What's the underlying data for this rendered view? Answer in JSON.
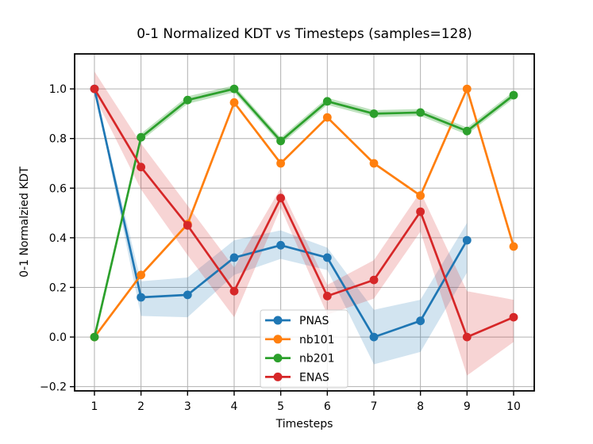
{
  "chart_data": {
    "type": "line",
    "title": "0-1 Normalized KDT vs Timesteps (samples=128)",
    "xlabel": "Timesteps",
    "ylabel": "0-1 Normalzied KDT",
    "grid": true,
    "grid_color": "#b0b0b0",
    "legend_position": "inside lower-center-left",
    "xlim": [
      0.5745,
      10.4435
    ],
    "ylim": [
      -0.217,
      1.141
    ],
    "x_ticks": [
      1,
      2,
      3,
      4,
      5,
      6,
      7,
      8,
      9,
      10
    ],
    "x_tick_labels": [
      "1",
      "2",
      "3",
      "4",
      "5",
      "6",
      "7",
      "8",
      "9",
      "10"
    ],
    "y_ticks": [
      -0.2,
      0.0,
      0.2,
      0.4,
      0.6,
      0.8,
      1.0
    ],
    "y_tick_labels": [
      "−0.2",
      "0.0",
      "0.2",
      "0.4",
      "0.6",
      "0.8",
      "1.0"
    ],
    "series": [
      {
        "name": "PNAS",
        "color": "#1f77b4",
        "band_alpha": 0.2,
        "x": [
          1,
          2,
          3,
          4,
          5,
          6,
          7,
          8,
          9
        ],
        "values": [
          1.0,
          0.16,
          0.17,
          0.32,
          0.37,
          0.32,
          0.0,
          0.065,
          0.39
        ],
        "band_upper": [
          1.0,
          0.225,
          0.24,
          0.39,
          0.43,
          0.36,
          0.11,
          0.15,
          0.46
        ],
        "band_lower": [
          1.0,
          0.085,
          0.08,
          0.25,
          0.315,
          0.27,
          -0.11,
          -0.06,
          0.26
        ]
      },
      {
        "name": "nb101",
        "color": "#ff7f0e",
        "band_alpha": 0.15,
        "x": [
          1,
          2,
          3,
          4,
          5,
          6,
          7,
          8,
          9,
          10
        ],
        "values": [
          0.0,
          0.25,
          0.455,
          0.945,
          0.7,
          0.885,
          0.7,
          0.57,
          1.0,
          0.365
        ],
        "band_upper": [
          0.006,
          0.256,
          0.461,
          0.951,
          0.706,
          0.891,
          0.706,
          0.576,
          1.006,
          0.371
        ],
        "band_lower": [
          -0.006,
          0.244,
          0.449,
          0.939,
          0.694,
          0.879,
          0.694,
          0.564,
          0.994,
          0.359
        ]
      },
      {
        "name": "nb201",
        "color": "#2ca02c",
        "band_alpha": 0.3,
        "x": [
          1,
          2,
          3,
          4,
          5,
          6,
          7,
          8,
          9,
          10
        ],
        "values": [
          0.0,
          0.805,
          0.955,
          1.0,
          0.79,
          0.95,
          0.9,
          0.905,
          0.83,
          0.975
        ],
        "band_upper": [
          0.013,
          0.82,
          0.97,
          1.014,
          0.804,
          0.964,
          0.914,
          0.919,
          0.844,
          0.989
        ],
        "band_lower": [
          -0.013,
          0.79,
          0.94,
          0.986,
          0.776,
          0.936,
          0.886,
          0.891,
          0.816,
          0.961
        ]
      },
      {
        "name": "ENAS",
        "color": "#d62728",
        "band_alpha": 0.2,
        "x": [
          1,
          2,
          3,
          4,
          5,
          6,
          7,
          8,
          9,
          10
        ],
        "values": [
          1.0,
          0.685,
          0.45,
          0.185,
          0.56,
          0.165,
          0.23,
          0.505,
          0.0,
          0.08
        ],
        "band_upper": [
          1.07,
          0.78,
          0.53,
          0.28,
          0.6,
          0.21,
          0.31,
          0.585,
          0.185,
          0.15
        ],
        "band_lower": [
          0.97,
          0.595,
          0.33,
          0.08,
          0.52,
          0.09,
          0.155,
          0.425,
          -0.155,
          -0.02
        ]
      }
    ]
  }
}
